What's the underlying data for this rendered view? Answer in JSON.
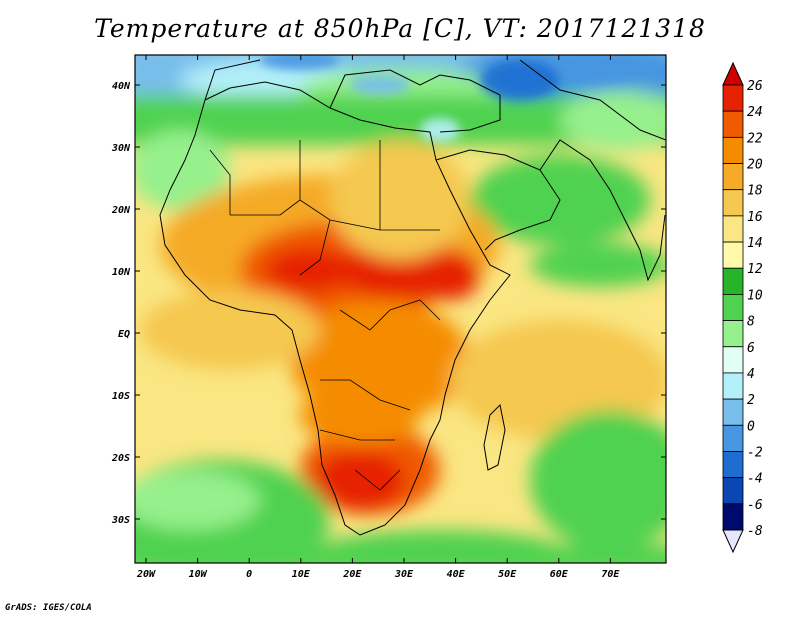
{
  "title": "Temperature at 850hPa [C], VT: 2017121318",
  "credit": "GrADS: IGES/COLA",
  "map": {
    "lat_labels": [
      "40N",
      "30N",
      "20N",
      "10N",
      "EQ",
      "10S",
      "20S",
      "30S"
    ],
    "lon_labels": [
      "20W",
      "10W",
      "0",
      "10E",
      "20E",
      "30E",
      "40E",
      "50E",
      "60E",
      "70E"
    ]
  },
  "colorbar": {
    "labels": [
      "26",
      "24",
      "22",
      "20",
      "18",
      "16",
      "14",
      "12",
      "10",
      "8",
      "6",
      "4",
      "2",
      "0",
      "-2",
      "-4",
      "-6",
      "-8"
    ],
    "colors": [
      "#a50000",
      "#e62300",
      "#f05a00",
      "#f58c00",
      "#f5aa28",
      "#f5c850",
      "#fae682",
      "#fffaaa",
      "#28b428",
      "#50d250",
      "#96f08c",
      "#e1fff5",
      "#b4f0fa",
      "#78beeb",
      "#4696e1",
      "#1e6ed2",
      "#0a46b4",
      "#000a6e"
    ],
    "top_arrow_color": "#d20000",
    "bottom_arrow_color": "#e6e6ff"
  }
}
